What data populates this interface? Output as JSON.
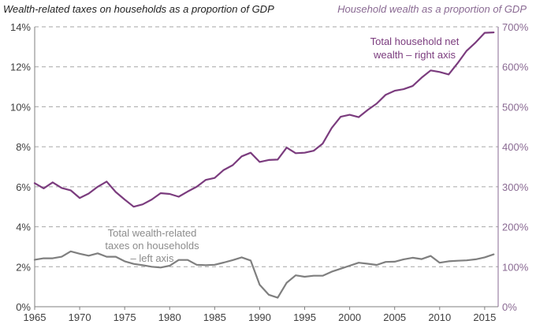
{
  "chart_data": {
    "type": "line",
    "title_left": "Wealth-related taxes on households as a proportion of GDP",
    "title_right": "Household wealth as a proportion of GDP",
    "left_axis": {
      "ylim": [
        0,
        14
      ],
      "ticks": [
        "0%",
        "2%",
        "4%",
        "6%",
        "8%",
        "10%",
        "12%",
        "14%"
      ]
    },
    "right_axis": {
      "ylim": [
        0,
        700
      ],
      "ticks": [
        "0%",
        "100%",
        "200%",
        "300%",
        "400%",
        "500%",
        "600%",
        "700%"
      ]
    },
    "x_axis": {
      "xlim": [
        1965,
        2016.5
      ],
      "ticks": [
        "1965",
        "1970",
        "1975",
        "1980",
        "1985",
        "1990",
        "1995",
        "2000",
        "2005",
        "2010",
        "2015"
      ]
    },
    "grid": "horizontal dashed",
    "colors": {
      "wealth": "#7b3c7e",
      "taxes": "#7f7f7f",
      "grid": "#a6a6a6",
      "right_axis_text": "#8a6a93"
    },
    "annotations": {
      "wealth": [
        "Total household net",
        "wealth – right axis"
      ],
      "taxes": [
        "Total wealth-related",
        "taxes on households",
        "– left axis"
      ]
    },
    "series": [
      {
        "key": "wealth",
        "axis": "right",
        "x": [
          1965,
          1966,
          1967,
          1968,
          1969,
          1970,
          1971,
          1972,
          1973,
          1974,
          1975,
          1976,
          1977,
          1978,
          1979,
          1980,
          1981,
          1982,
          1983,
          1984,
          1985,
          1986,
          1987,
          1988,
          1989,
          1990,
          1991,
          1992,
          1993,
          1994,
          1995,
          1996,
          1997,
          1998,
          1999,
          2000,
          2001,
          2002,
          2003,
          2004,
          2005,
          2006,
          2007,
          2008,
          2009,
          2010,
          2011,
          2012,
          2013,
          2014,
          2015,
          2016
        ],
        "values": [
          309,
          296,
          311,
          297,
          291,
          272,
          283,
          300,
          313,
          287,
          268,
          250,
          256,
          268,
          284,
          282,
          275,
          288,
          300,
          317,
          322,
          342,
          354,
          376,
          385,
          362,
          367,
          368,
          398,
          384,
          385,
          390,
          408,
          447,
          475,
          480,
          474,
          492,
          508,
          530,
          540,
          544,
          552,
          573,
          591,
          587,
          581,
          609,
          640,
          661,
          685,
          686
        ]
      },
      {
        "key": "taxes",
        "axis": "left",
        "x": [
          1965,
          1966,
          1967,
          1968,
          1969,
          1970,
          1971,
          1972,
          1973,
          1974,
          1975,
          1976,
          1977,
          1978,
          1979,
          1980,
          1981,
          1982,
          1983,
          1984,
          1985,
          1986,
          1987,
          1988,
          1989,
          1990,
          1991,
          1992,
          1993,
          1994,
          1995,
          1996,
          1997,
          1998,
          1999,
          2000,
          2001,
          2002,
          2003,
          2004,
          2005,
          2006,
          2007,
          2008,
          2009,
          2010,
          2011,
          2012,
          2013,
          2014,
          2015,
          2016
        ],
        "values": [
          2.35,
          2.42,
          2.42,
          2.5,
          2.77,
          2.65,
          2.55,
          2.67,
          2.5,
          2.5,
          2.27,
          2.14,
          2.08,
          2.0,
          1.96,
          2.05,
          2.34,
          2.34,
          2.1,
          2.08,
          2.1,
          2.21,
          2.33,
          2.47,
          2.31,
          1.1,
          0.6,
          0.45,
          1.2,
          1.57,
          1.5,
          1.55,
          1.55,
          1.75,
          1.9,
          2.05,
          2.2,
          2.15,
          2.09,
          2.24,
          2.25,
          2.37,
          2.45,
          2.38,
          2.54,
          2.2,
          2.27,
          2.3,
          2.32,
          2.37,
          2.47,
          2.62
        ]
      }
    ]
  }
}
